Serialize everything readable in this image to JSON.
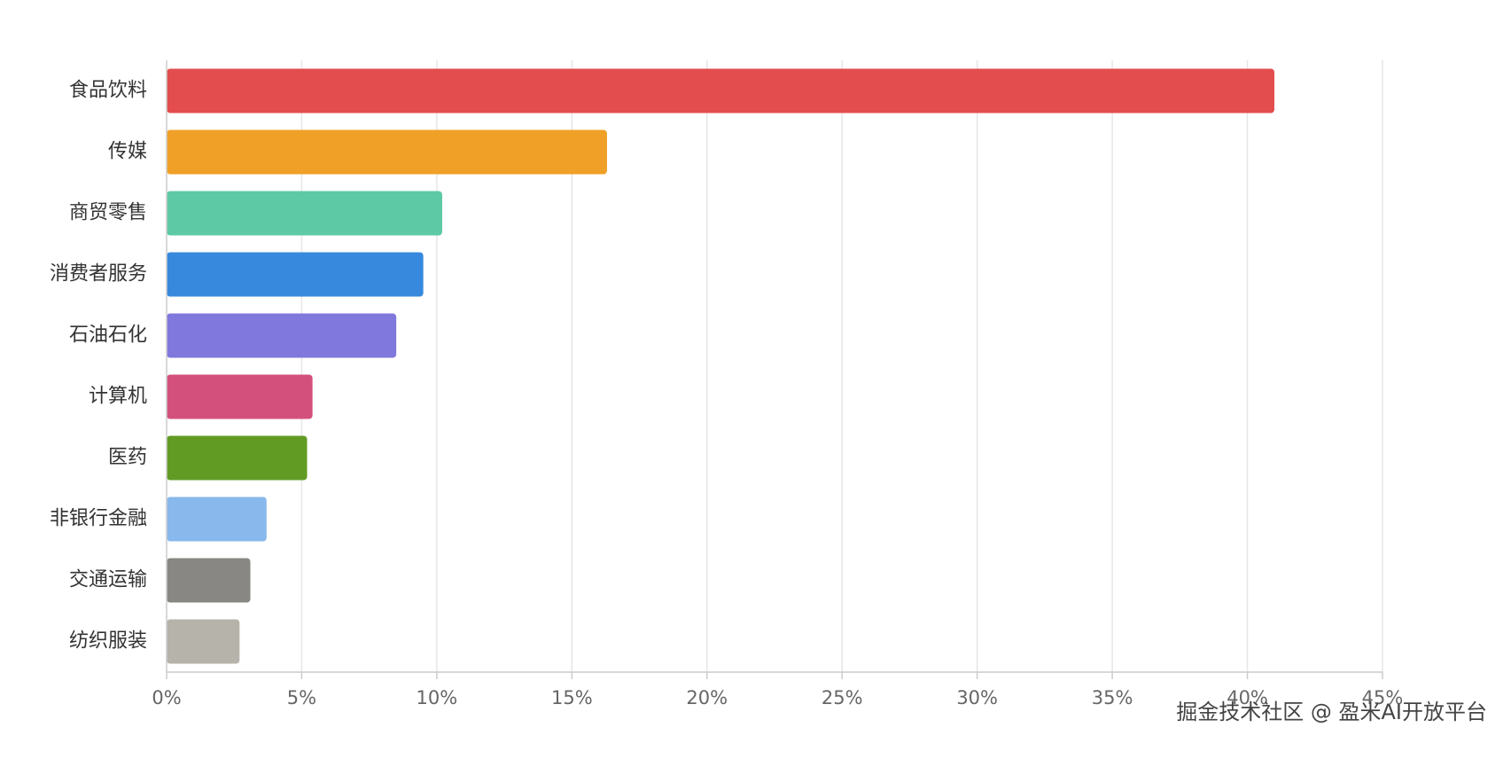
{
  "watermark": "掘金技术社区 @ 盈米AI开放平台",
  "chart_data": {
    "type": "bar",
    "orientation": "horizontal",
    "title": "",
    "xlabel": "",
    "ylabel": "",
    "xlim": [
      0,
      45
    ],
    "x_ticks": [
      0,
      5,
      10,
      15,
      20,
      25,
      30,
      35,
      40,
      45
    ],
    "x_tick_labels": [
      "0%",
      "5%",
      "10%",
      "15%",
      "20%",
      "25%",
      "30%",
      "35%",
      "40%",
      "45%"
    ],
    "grid": "vertical",
    "legend": "none",
    "categories": [
      "食品饮料",
      "传媒",
      "商贸零售",
      "消费者服务",
      "石油石化",
      "计算机",
      "医药",
      "非银行金融",
      "交通运输",
      "纺织服装"
    ],
    "values": [
      41.0,
      16.3,
      10.2,
      9.5,
      8.5,
      5.4,
      5.2,
      3.7,
      3.1,
      2.7
    ],
    "colors": [
      "#e34d4d",
      "#f0a027",
      "#5ecaa5",
      "#3789de",
      "#8078dc",
      "#d4507c",
      "#629b24",
      "#88b8ec",
      "#888783",
      "#b5b3aa"
    ],
    "axis_color": "#cccccc",
    "grid_color": "#e6e6e6"
  }
}
